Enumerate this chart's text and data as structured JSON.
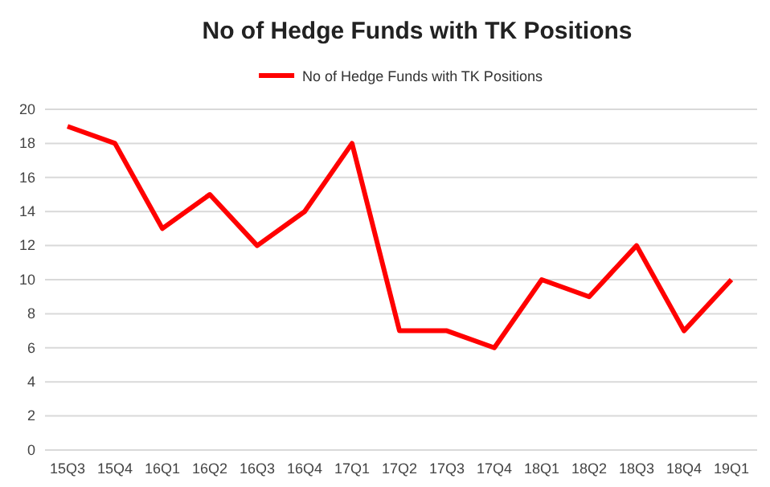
{
  "chart_data": {
    "type": "line",
    "title": "No of Hedge Funds with TK Positions",
    "categories": [
      "15Q3",
      "15Q4",
      "16Q1",
      "16Q2",
      "16Q3",
      "16Q4",
      "17Q1",
      "17Q2",
      "17Q3",
      "17Q4",
      "18Q1",
      "18Q2",
      "18Q3",
      "18Q4",
      "19Q1"
    ],
    "series": [
      {
        "name": "No of Hedge Funds with TK Positions",
        "color": "#ff0000",
        "values": [
          19,
          18,
          13,
          15,
          12,
          14,
          18,
          7,
          7,
          6,
          10,
          9,
          12,
          7,
          10
        ]
      }
    ],
    "ylim": [
      0,
      20
    ],
    "yticks": [
      0,
      2,
      4,
      6,
      8,
      10,
      12,
      14,
      16,
      18,
      20
    ],
    "grid": "y",
    "legend": "top",
    "marker": "none",
    "line_style": "solid"
  }
}
